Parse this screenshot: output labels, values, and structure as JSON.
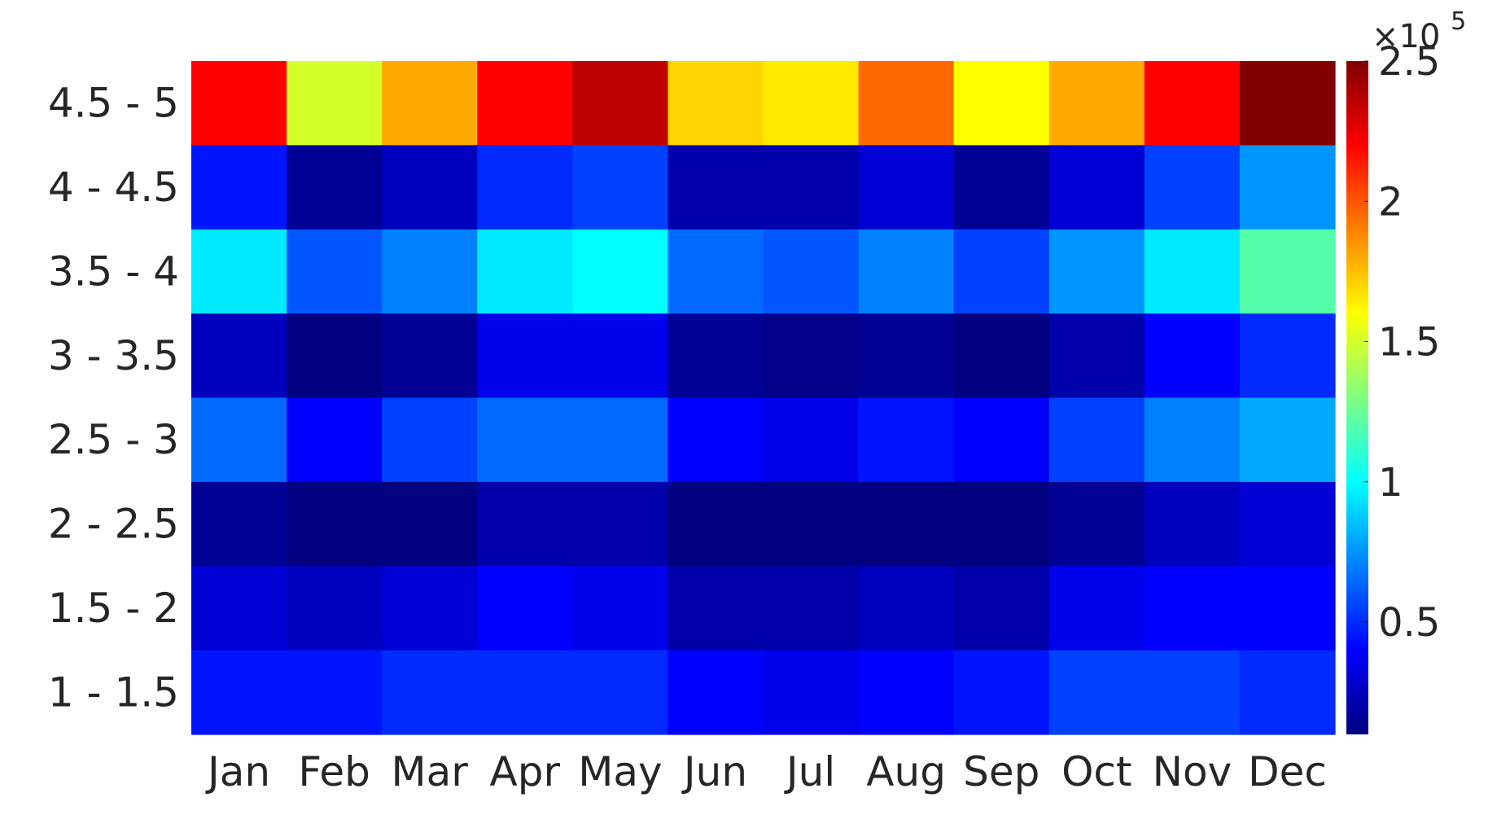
{
  "chart_data": {
    "type": "heatmap",
    "title": "",
    "xlabel": "",
    "ylabel": "",
    "x_categories": [
      "Jan",
      "Feb",
      "Mar",
      "Apr",
      "May",
      "Jun",
      "Jul",
      "Aug",
      "Sep",
      "Oct",
      "Nov",
      "Dec"
    ],
    "y_categories": [
      "4.5 - 5",
      "4 - 4.5",
      "3.5 - 4",
      "3 - 3.5",
      "2.5 - 3",
      "2 - 2.5",
      "1.5 - 2",
      "1 - 1.5"
    ],
    "values": [
      [
        220000,
        150000,
        180000,
        220000,
        235000,
        170000,
        165000,
        195000,
        160000,
        180000,
        220000,
        250000
      ],
      [
        45000,
        15000,
        25000,
        50000,
        55000,
        20000,
        20000,
        30000,
        15000,
        30000,
        55000,
        75000
      ],
      [
        95000,
        60000,
        70000,
        95000,
        100000,
        65000,
        60000,
        70000,
        55000,
        75000,
        95000,
        120000
      ],
      [
        25000,
        10000,
        15000,
        35000,
        35000,
        15000,
        12000,
        15000,
        10000,
        20000,
        40000,
        50000
      ],
      [
        65000,
        40000,
        55000,
        65000,
        65000,
        40000,
        35000,
        45000,
        40000,
        55000,
        70000,
        80000
      ],
      [
        15000,
        8000,
        10000,
        20000,
        20000,
        5000,
        5000,
        5000,
        5000,
        15000,
        25000,
        30000
      ],
      [
        30000,
        25000,
        30000,
        40000,
        35000,
        20000,
        20000,
        25000,
        20000,
        35000,
        40000,
        40000
      ],
      [
        45000,
        45000,
        50000,
        50000,
        50000,
        40000,
        35000,
        40000,
        45000,
        55000,
        55000,
        50000
      ]
    ],
    "colorbar": {
      "colormap": "jet",
      "clim": [
        10000,
        250000
      ],
      "ticks": [
        50000,
        100000,
        150000,
        200000,
        250000
      ],
      "tick_labels": [
        "0.5",
        "1",
        "1.5",
        "2",
        "2.5"
      ],
      "exponent_label": "×10",
      "exponent": "5"
    }
  }
}
